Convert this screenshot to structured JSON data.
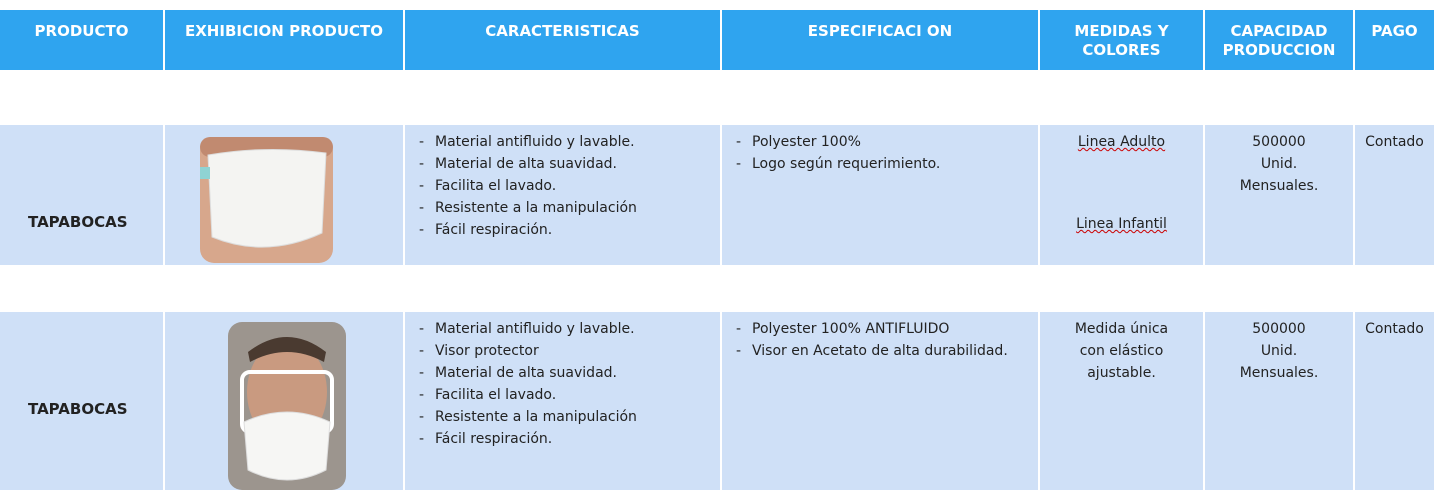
{
  "header": {
    "columns": [
      "PRODUCTO",
      "EXHIBICION PRODUCTO",
      "CARACTERISTICAS",
      "ESPECIFICACI ON",
      "MEDIDAS Y COLORES",
      "CAPACIDAD PRODUCCION",
      "PAGO"
    ]
  },
  "rows": [
    {
      "producto": "TAPABOCAS",
      "caracteristicas": [
        "Material antifluido y lavable.",
        "Material de alta suavidad.",
        "Facilita el lavado.",
        "Resistente a la manipulación",
        "Fácil respiración."
      ],
      "especificacion": [
        "Polyester 100%",
        "Logo según requerimiento."
      ],
      "medidas": [
        "Linea Adulto",
        "Linea Infantil"
      ],
      "capacidad": [
        "500000",
        "Unid.",
        "Mensuales."
      ],
      "pago": "Contado"
    },
    {
      "producto": "TAPABOCAS",
      "caracteristicas": [
        "Material antifluido y lavable.",
        "Visor protector",
        "Material de alta suavidad.",
        "Facilita el lavado.",
        "Resistente a la manipulación",
        "Fácil respiración."
      ],
      "especificacion": [
        "Polyester 100% ANTIFLUIDO",
        "Visor en Acetato de alta durabilidad."
      ],
      "medidas": [
        "Medida única",
        "con elástico",
        "ajustable."
      ],
      "capacidad": [
        "500000",
        "Unid.",
        "Mensuales."
      ],
      "pago": "Contado"
    }
  ]
}
